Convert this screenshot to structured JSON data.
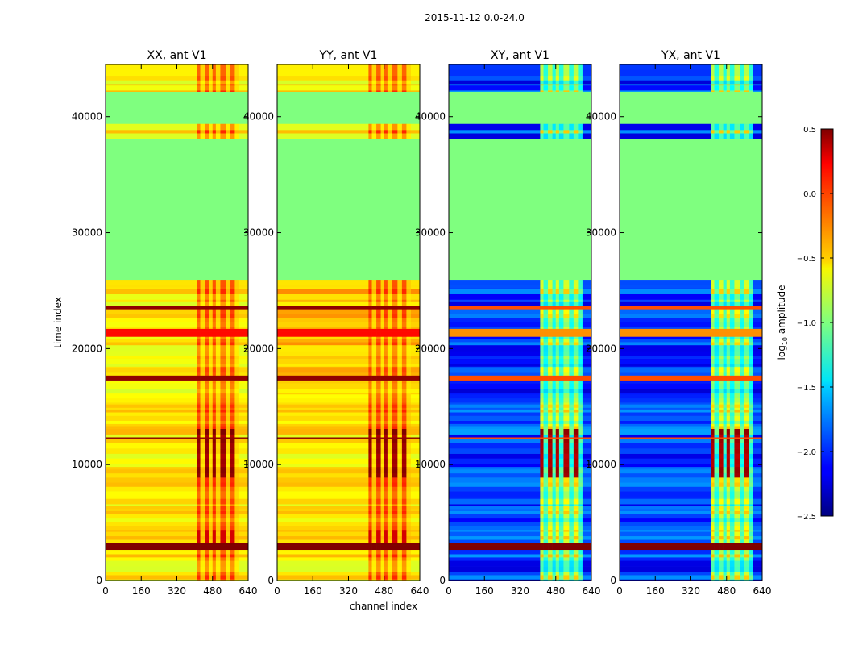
{
  "chart_data": {
    "type": "heatmap",
    "suptitle": "2015-11-12 0.0-24.0",
    "xlabel": "channel index",
    "ylabel": "time index",
    "xlim": [
      0,
      640
    ],
    "ylim": [
      0,
      44500
    ],
    "xticks": [
      0,
      160,
      320,
      480,
      640
    ],
    "yticks": [
      0,
      10000,
      20000,
      30000,
      40000
    ],
    "panels": [
      {
        "title": "XX, ant V1",
        "kind": "auto"
      },
      {
        "title": "YY, ant V1",
        "kind": "auto"
      },
      {
        "title": "XY, ant V1",
        "kind": "cross"
      },
      {
        "title": "YX, ant V1",
        "kind": "cross"
      }
    ],
    "flagged_time_ranges": [
      [
        26000,
        38200
      ],
      [
        39400,
        42100
      ]
    ],
    "colorbar": {
      "label_prefix": "log",
      "label_sub": "10",
      "label_suffix": " amplitude",
      "vmin": -2.5,
      "vmax": 0.5,
      "ticks": [
        -2.5,
        -2.0,
        -1.5,
        -1.0,
        -0.5,
        0.0,
        0.5
      ],
      "tick_labels": [
        "−2.5",
        "−2.0",
        "−1.5",
        "−1.0",
        "−0.5",
        "0.0",
        "0.5"
      ]
    },
    "colors": {
      "flag": "#7fff7f",
      "background": "#ffffff"
    }
  }
}
